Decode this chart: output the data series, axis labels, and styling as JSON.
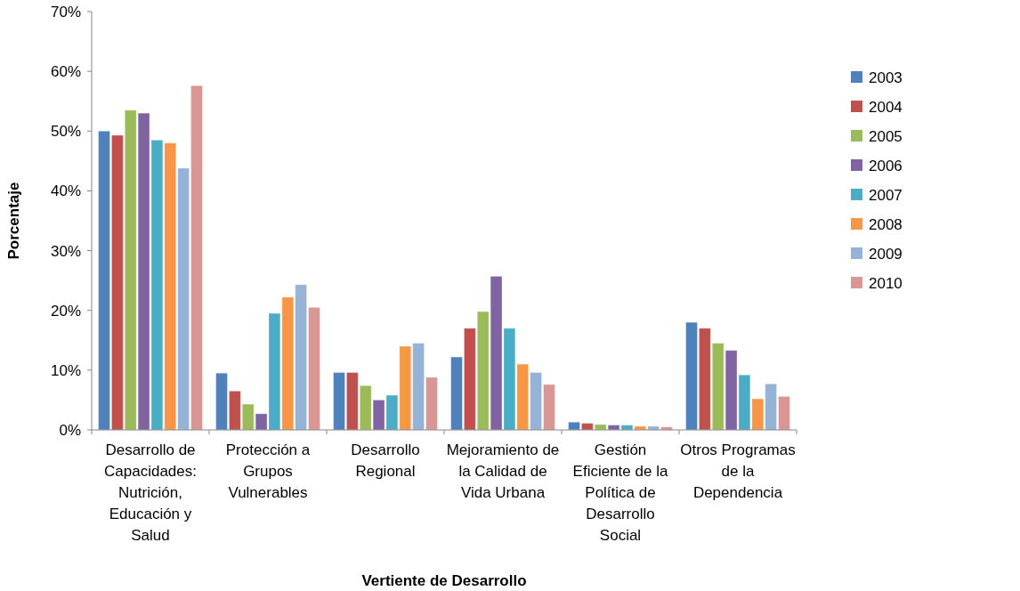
{
  "chart_data": {
    "type": "bar",
    "xlabel": "Vertiente de Desarrollo",
    "ylabel": "Porcentaje",
    "categories": [
      "Desarrollo de Capacidades: Nutrición, Educación y Salud",
      "Protección a Grupos Vulnerables",
      "Desarrollo Regional",
      "Mejoramiento de la Calidad de Vida Urbana",
      "Gestión Eficiente de la Política de Desarrollo Social",
      "Otros Programas de la Dependencia"
    ],
    "series": [
      {
        "name": "2003",
        "color": "#4f81bd",
        "values": [
          50,
          9.5,
          9.6,
          12.2,
          1.3,
          18
        ]
      },
      {
        "name": "2004",
        "color": "#c0504d",
        "values": [
          49.3,
          6.5,
          9.6,
          17,
          1.1,
          17
        ]
      },
      {
        "name": "2005",
        "color": "#9bbb59",
        "values": [
          53.5,
          4.3,
          7.4,
          19.8,
          0.9,
          14.5
        ]
      },
      {
        "name": "2006",
        "color": "#8064a2",
        "values": [
          53,
          2.7,
          5,
          25.7,
          0.8,
          13.3
        ]
      },
      {
        "name": "2007",
        "color": "#4bacc6",
        "values": [
          48.5,
          19.5,
          5.8,
          17,
          0.8,
          9.2
        ]
      },
      {
        "name": "2008",
        "color": "#f79646",
        "values": [
          48,
          22.2,
          14,
          11,
          0.6,
          5.2
        ]
      },
      {
        "name": "2009",
        "color": "#95b3d7",
        "values": [
          43.8,
          24.3,
          14.5,
          9.6,
          0.6,
          7.7
        ]
      },
      {
        "name": "2010",
        "color": "#d99694",
        "values": [
          57.6,
          20.5,
          8.8,
          7.6,
          0.5,
          5.6
        ]
      }
    ],
    "ylim": [
      0,
      70
    ],
    "yticks": [
      {
        "value": 0,
        "label": "0%"
      },
      {
        "value": 10,
        "label": "10%"
      },
      {
        "value": 20,
        "label": "20%"
      },
      {
        "value": 30,
        "label": "30%"
      },
      {
        "value": 40,
        "label": "40%"
      },
      {
        "value": 50,
        "label": "50%"
      },
      {
        "value": 60,
        "label": "60%"
      },
      {
        "value": 70,
        "label": "70%"
      }
    ],
    "legend": "right"
  }
}
